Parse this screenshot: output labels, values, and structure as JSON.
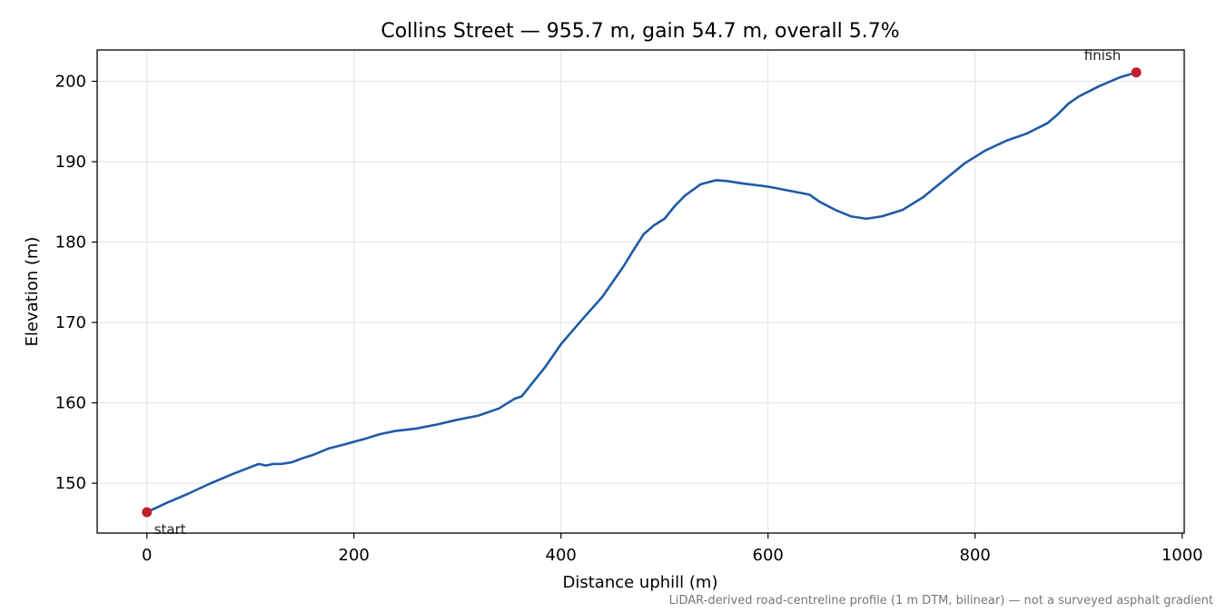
{
  "chart_data": {
    "type": "line",
    "title": "Collins Street — 955.7 m, gain 54.7 m, overall 5.7%",
    "xlabel": "Distance uphill (m)",
    "ylabel": "Elevation (m)",
    "xlim": [
      -48,
      1002
    ],
    "ylim": [
      143.8,
      203.9
    ],
    "xticks": [
      0,
      200,
      400,
      600,
      800,
      1000
    ],
    "yticks": [
      150,
      160,
      170,
      180,
      190,
      200
    ],
    "grid": true,
    "line_color": "#1f5aa6",
    "marker_color": "#c0202a",
    "series": [
      {
        "x": [
          0,
          20,
          40,
          60,
          80,
          100,
          108,
          115,
          122,
          130,
          140,
          150,
          160,
          175,
          190,
          210,
          225,
          240,
          260,
          280,
          300,
          320,
          340,
          355,
          362,
          370,
          385,
          400,
          420,
          440,
          460,
          470,
          480,
          490,
          500,
          510,
          520,
          535,
          550,
          560,
          575,
          600,
          620,
          640,
          650,
          665,
          680,
          695,
          710,
          730,
          750,
          770,
          790,
          810,
          830,
          850,
          870,
          880,
          890,
          900,
          920,
          940,
          955.7
        ],
        "y": [
          146.4,
          147.6,
          148.7,
          149.9,
          151.0,
          152.0,
          152.4,
          152.2,
          152.4,
          152.4,
          152.6,
          153.1,
          153.5,
          154.3,
          154.8,
          155.5,
          156.1,
          156.5,
          156.8,
          157.3,
          157.9,
          158.4,
          159.3,
          160.5,
          160.8,
          162.1,
          164.5,
          167.3,
          170.3,
          173.2,
          176.9,
          179.0,
          181.0,
          182.1,
          182.9,
          184.5,
          185.8,
          187.2,
          187.7,
          187.6,
          187.3,
          186.9,
          186.4,
          185.9,
          185.0,
          184.0,
          183.2,
          182.9,
          183.2,
          184.0,
          185.6,
          187.7,
          189.8,
          191.4,
          192.6,
          193.5,
          194.8,
          195.9,
          197.2,
          198.1,
          199.4,
          200.5,
          201.1
        ]
      }
    ],
    "markers": [
      {
        "x": 0,
        "y": 146.4
      },
      {
        "x": 955.7,
        "y": 201.1
      }
    ],
    "annotations": [
      {
        "text": "start",
        "x": 0,
        "y": 146.4,
        "anchor": "below-right"
      },
      {
        "text": "finish",
        "x": 955.7,
        "y": 201.1,
        "anchor": "above-left"
      }
    ],
    "footnote": "LiDAR-derived road-centreline profile (1 m DTM, bilinear) — not a surveyed asphalt gradient"
  }
}
